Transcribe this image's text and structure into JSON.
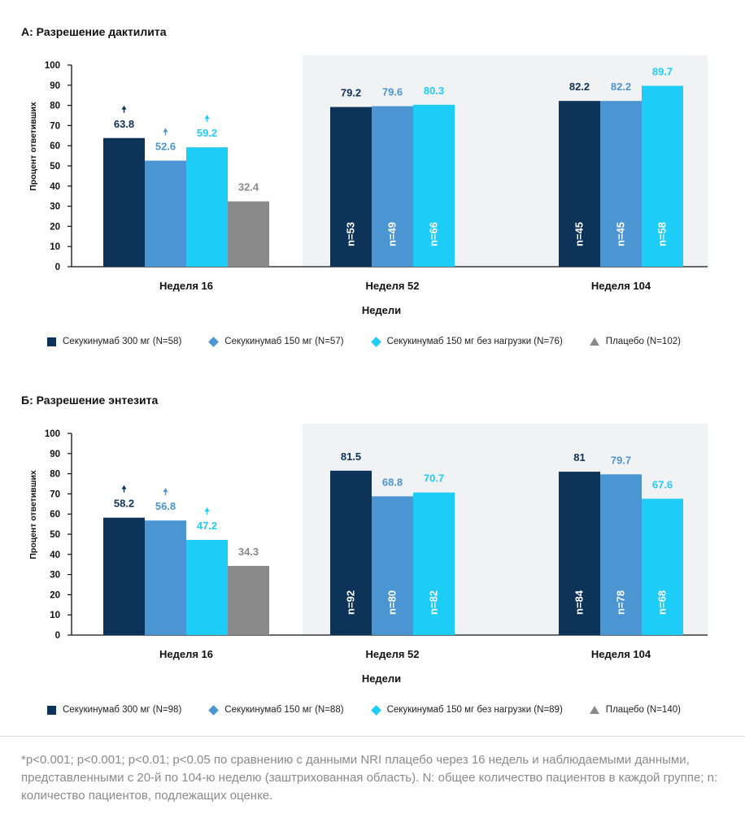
{
  "colors": {
    "navy": "#0d3358",
    "mid_blue": "#4b96d2",
    "cyan": "#1ecdf7",
    "gray": "#8a8a8a",
    "shade": "#f1f2f4"
  },
  "chart_data": [
    {
      "type": "bar",
      "title": "А: Разрешение дактилита",
      "xlabel": "Недели",
      "ylabel": "Процент ответивших",
      "ylim": [
        0,
        100
      ],
      "yticks": [
        "0",
        "10",
        "20",
        "30",
        "40",
        "50",
        "60",
        "70",
        "80",
        "90",
        "100"
      ],
      "categories": [
        "Неделя 16",
        "Неделя 52",
        "Неделя 104"
      ],
      "series": [
        {
          "name": "Секукинумаб 300 мг (N=58)",
          "marker": "square",
          "color": "#0d3358",
          "values": [
            63.8,
            79.2,
            82.2
          ],
          "labels": [
            "63.8",
            "79.2",
            "82.2"
          ],
          "n_labels": [
            "",
            "n=53",
            "n=45"
          ],
          "sig": [
            true,
            false,
            false
          ]
        },
        {
          "name": "Секукинумаб 150 мг (N=57)",
          "marker": "diamond",
          "color": "#4b96d2",
          "values": [
            52.6,
            79.6,
            82.2
          ],
          "labels": [
            "52.6",
            "79.6",
            "82.2"
          ],
          "n_labels": [
            "",
            "n=49",
            "n=45"
          ],
          "sig": [
            true,
            false,
            false
          ]
        },
        {
          "name": "Секукинумаб 150 мг без нагрузки (N=76)",
          "marker": "diamond",
          "color": "#1ecdf7",
          "values": [
            59.2,
            80.3,
            89.7
          ],
          "labels": [
            "59.2",
            "80.3",
            "89.7"
          ],
          "n_labels": [
            "",
            "n=66",
            "n=58"
          ],
          "sig": [
            true,
            false,
            false
          ]
        },
        {
          "name": "Плацебо (N=102)",
          "marker": "triangle",
          "color": "#8a8a8a",
          "values": [
            32.4,
            null,
            null
          ],
          "labels": [
            "32.4",
            "",
            ""
          ],
          "n_labels": [
            "",
            "",
            ""
          ],
          "sig": [
            false,
            false,
            false
          ]
        }
      ],
      "shaded_categories": [
        "Неделя 52",
        "Неделя 104"
      ]
    },
    {
      "type": "bar",
      "title": "Б: Разрешение энтезита",
      "xlabel": "Недели",
      "ylabel": "Процент ответивших",
      "ylim": [
        0,
        100
      ],
      "yticks": [
        "0",
        "10",
        "20",
        "30",
        "40",
        "50",
        "60",
        "70",
        "80",
        "90",
        "100"
      ],
      "categories": [
        "Неделя 16",
        "Неделя 52",
        "Неделя 104"
      ],
      "series": [
        {
          "name": "Секукинумаб 300 мг (N=98)",
          "marker": "square",
          "color": "#0d3358",
          "values": [
            58.2,
            81.5,
            81
          ],
          "labels": [
            "58.2",
            "81.5",
            "81"
          ],
          "n_labels": [
            "",
            "n=92",
            "n=84"
          ],
          "sig": [
            true,
            false,
            false
          ]
        },
        {
          "name": "Секукинумаб 150 мг (N=88)",
          "marker": "diamond",
          "color": "#4b96d2",
          "values": [
            56.8,
            68.8,
            79.7
          ],
          "labels": [
            "56.8",
            "68.8",
            "79.7"
          ],
          "n_labels": [
            "",
            "n=80",
            "n=78"
          ],
          "sig": [
            true,
            false,
            false
          ]
        },
        {
          "name": "Секукинумаб 150 мг без нагрузки (N=89)",
          "marker": "diamond",
          "color": "#1ecdf7",
          "values": [
            47.2,
            70.7,
            67.6
          ],
          "labels": [
            "47.2",
            "70.7",
            "67.6"
          ],
          "n_labels": [
            "",
            "n=82",
            "n=68"
          ],
          "sig": [
            true,
            false,
            false
          ]
        },
        {
          "name": "Плацебо (N=140)",
          "marker": "triangle",
          "color": "#8a8a8a",
          "values": [
            34.3,
            null,
            null
          ],
          "labels": [
            "34.3",
            "",
            ""
          ],
          "n_labels": [
            "",
            "",
            ""
          ],
          "sig": [
            false,
            false,
            false
          ]
        }
      ],
      "shaded_categories": [
        "Неделя 52",
        "Неделя 104"
      ]
    }
  ],
  "footnote": "*p<0.001; p<0.001; p<0.01; p<0.05 по сравнению с данными NRI плацебо через 16 недель и наблюдаемыми данными, представленными с 20-й по 104-ю неделю (заштрихованная область). N: общее количество пациентов в каждой группе; n: количество пациентов, подлежащих оценке."
}
